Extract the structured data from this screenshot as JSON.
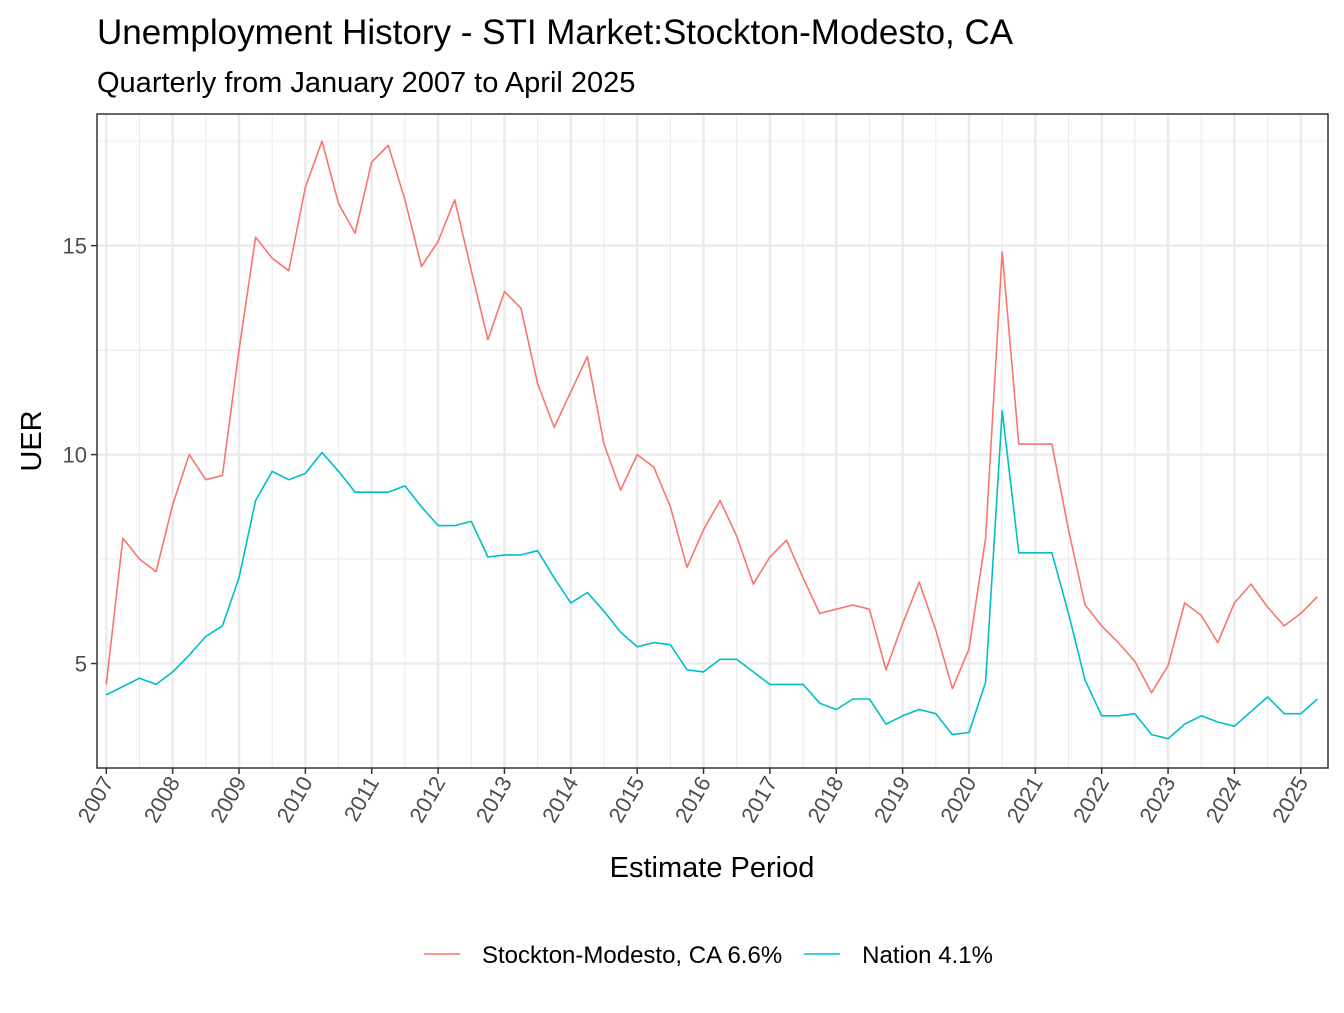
{
  "chart_data": {
    "type": "line",
    "title": "Unemployment History - STI Market:Stockton-Modesto, CA",
    "subtitle": "Quarterly from January 2007 to April 2025",
    "xlabel": "Estimate Period",
    "ylabel": "UER",
    "xlim": [
      2006.86,
      2025.41
    ],
    "ylim": [
      2.5,
      18.15
    ],
    "x_ticks": [
      "2007",
      "2008",
      "2009",
      "2010",
      "2011",
      "2012",
      "2013",
      "2014",
      "2015",
      "2016",
      "2017",
      "2018",
      "2019",
      "2020",
      "2021",
      "2022",
      "2023",
      "2024",
      "2025"
    ],
    "y_ticks": [
      5,
      10,
      15
    ],
    "grid": true,
    "legend_position": "bottom",
    "x": [
      "2007-01",
      "2007-04",
      "2007-07",
      "2007-10",
      "2008-01",
      "2008-04",
      "2008-07",
      "2008-10",
      "2009-01",
      "2009-04",
      "2009-07",
      "2009-10",
      "2010-01",
      "2010-04",
      "2010-07",
      "2010-10",
      "2011-01",
      "2011-04",
      "2011-07",
      "2011-10",
      "2012-01",
      "2012-04",
      "2012-07",
      "2012-10",
      "2013-01",
      "2013-04",
      "2013-07",
      "2013-10",
      "2014-01",
      "2014-04",
      "2014-07",
      "2014-10",
      "2015-01",
      "2015-04",
      "2015-07",
      "2015-10",
      "2016-01",
      "2016-04",
      "2016-07",
      "2016-10",
      "2017-01",
      "2017-04",
      "2017-07",
      "2017-10",
      "2018-01",
      "2018-04",
      "2018-07",
      "2018-10",
      "2019-01",
      "2019-04",
      "2019-07",
      "2019-10",
      "2020-01",
      "2020-04",
      "2020-07",
      "2020-10",
      "2021-01",
      "2021-04",
      "2021-07",
      "2021-10",
      "2022-01",
      "2022-04",
      "2022-07",
      "2022-10",
      "2023-01",
      "2023-04",
      "2023-07",
      "2023-10",
      "2024-01",
      "2024-04",
      "2024-07",
      "2024-10",
      "2025-01",
      "2025-04"
    ],
    "series": [
      {
        "name": "Stockton-Modesto, CA 6.6%",
        "color": "#F8766D",
        "values": [
          4.5,
          8.0,
          7.5,
          7.2,
          8.8,
          10.0,
          9.4,
          9.5,
          12.5,
          15.2,
          14.7,
          14.4,
          16.4,
          17.5,
          16.0,
          15.3,
          17.0,
          17.4,
          16.1,
          14.5,
          15.1,
          16.1,
          14.4,
          12.75,
          13.9,
          13.5,
          11.7,
          10.65,
          11.5,
          12.35,
          10.25,
          9.15,
          10.0,
          9.7,
          8.75,
          7.3,
          8.2,
          8.9,
          8.05,
          6.9,
          7.55,
          7.95,
          7.05,
          6.2,
          6.3,
          6.4,
          6.3,
          4.85,
          5.95,
          6.95,
          5.8,
          4.4,
          5.35,
          8.0,
          14.85,
          10.25,
          10.25,
          10.25,
          8.2,
          6.4,
          5.9,
          5.5,
          5.05,
          4.3,
          4.95,
          6.45,
          6.15,
          5.5,
          6.45,
          6.9,
          6.35,
          5.9,
          6.2,
          6.6
        ]
      },
      {
        "name": "Nation 4.1%",
        "color": "#00BFC4",
        "values": [
          4.25,
          4.45,
          4.65,
          4.5,
          4.8,
          5.2,
          5.65,
          5.9,
          7.05,
          8.9,
          9.6,
          9.4,
          9.55,
          10.05,
          9.6,
          9.1,
          9.1,
          9.1,
          9.25,
          8.75,
          8.3,
          8.3,
          8.4,
          7.55,
          7.6,
          7.6,
          7.7,
          7.05,
          6.45,
          6.7,
          6.25,
          5.75,
          5.4,
          5.5,
          5.45,
          4.85,
          4.8,
          5.1,
          5.1,
          4.8,
          4.5,
          4.5,
          4.5,
          4.05,
          3.9,
          4.15,
          4.15,
          3.55,
          3.75,
          3.9,
          3.8,
          3.3,
          3.35,
          4.55,
          11.05,
          7.65,
          7.65,
          7.65,
          6.2,
          4.6,
          3.75,
          3.75,
          3.8,
          3.3,
          3.2,
          3.55,
          3.75,
          3.6,
          3.5,
          3.85,
          4.2,
          3.8,
          3.8,
          4.15
        ]
      }
    ]
  }
}
